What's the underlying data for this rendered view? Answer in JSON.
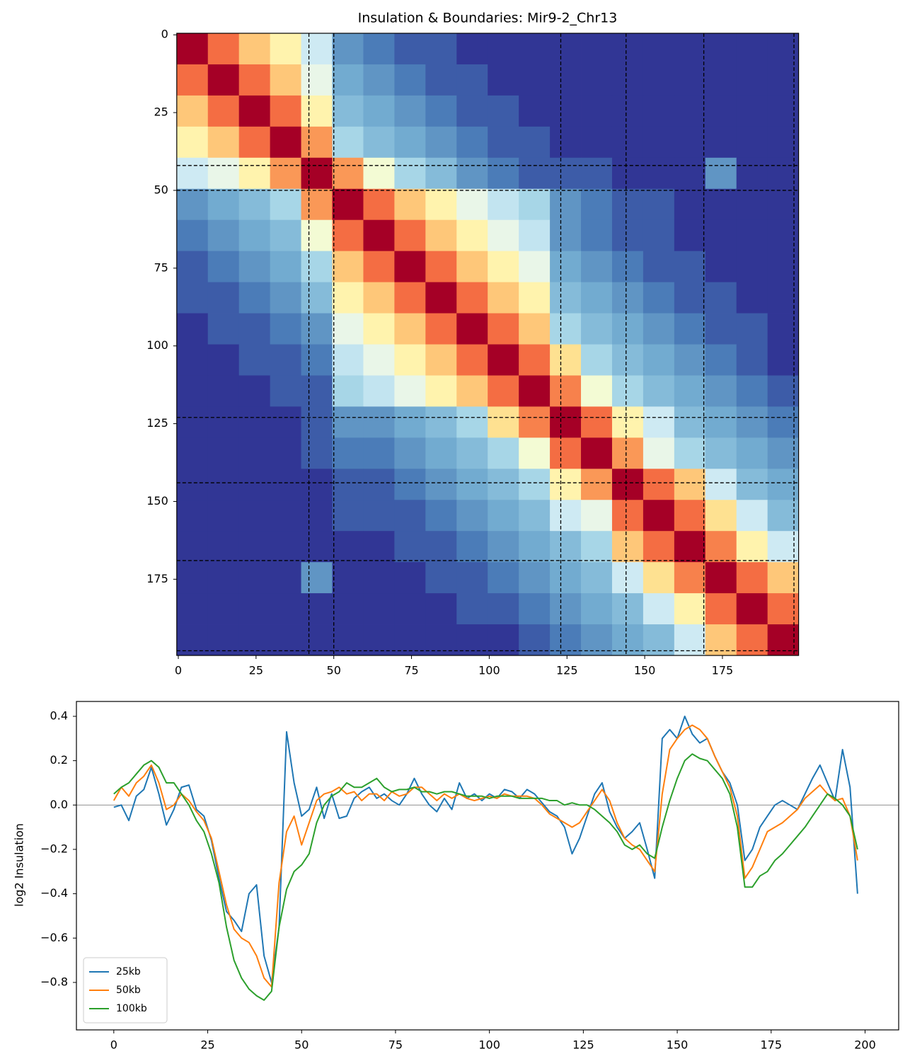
{
  "chart_data": [
    {
      "type": "heatmap",
      "title": "Insulation & Boundaries: Mir9-2_Chr13",
      "bin_edges": [
        0,
        10,
        20,
        30,
        40,
        50,
        60,
        70,
        80,
        90,
        100,
        110,
        120,
        130,
        140,
        150,
        160,
        170,
        180,
        190,
        200
      ],
      "matrix": [
        [
          1,
          0.55,
          0.35,
          0.25,
          0.15,
          0.08,
          0.07,
          0.06,
          0.06,
          0.05,
          0.05,
          0.05,
          0.05,
          0.05,
          0.05,
          0.05,
          0.05,
          0.05,
          0.05,
          0.05
        ],
        [
          0.55,
          1,
          0.55,
          0.35,
          0.18,
          0.09,
          0.08,
          0.07,
          0.06,
          0.06,
          0.05,
          0.05,
          0.05,
          0.05,
          0.05,
          0.05,
          0.05,
          0.05,
          0.05,
          0.05
        ],
        [
          0.35,
          0.55,
          1,
          0.55,
          0.25,
          0.1,
          0.09,
          0.08,
          0.07,
          0.06,
          0.06,
          0.05,
          0.05,
          0.05,
          0.05,
          0.05,
          0.05,
          0.05,
          0.05,
          0.05
        ],
        [
          0.25,
          0.35,
          0.55,
          1,
          0.45,
          0.12,
          0.1,
          0.09,
          0.08,
          0.07,
          0.06,
          0.06,
          0.05,
          0.05,
          0.05,
          0.05,
          0.05,
          0.05,
          0.05,
          0.05
        ],
        [
          0.15,
          0.18,
          0.25,
          0.45,
          1,
          0.45,
          0.2,
          0.12,
          0.1,
          0.08,
          0.07,
          0.06,
          0.06,
          0.06,
          0.05,
          0.05,
          0.05,
          0.08,
          0.05,
          0.05
        ],
        [
          0.08,
          0.09,
          0.1,
          0.12,
          0.45,
          1,
          0.55,
          0.35,
          0.25,
          0.18,
          0.14,
          0.12,
          0.08,
          0.07,
          0.06,
          0.06,
          0.05,
          0.05,
          0.05,
          0.05
        ],
        [
          0.07,
          0.08,
          0.09,
          0.1,
          0.2,
          0.55,
          1,
          0.55,
          0.35,
          0.25,
          0.18,
          0.14,
          0.08,
          0.07,
          0.06,
          0.06,
          0.05,
          0.05,
          0.05,
          0.05
        ],
        [
          0.06,
          0.07,
          0.08,
          0.09,
          0.12,
          0.35,
          0.55,
          1,
          0.55,
          0.35,
          0.25,
          0.18,
          0.09,
          0.08,
          0.07,
          0.06,
          0.06,
          0.05,
          0.05,
          0.05
        ],
        [
          0.06,
          0.06,
          0.07,
          0.08,
          0.1,
          0.25,
          0.35,
          0.55,
          1,
          0.55,
          0.35,
          0.25,
          0.1,
          0.09,
          0.08,
          0.07,
          0.06,
          0.06,
          0.05,
          0.05
        ],
        [
          0.05,
          0.06,
          0.06,
          0.07,
          0.08,
          0.18,
          0.25,
          0.35,
          0.55,
          1,
          0.55,
          0.35,
          0.12,
          0.1,
          0.09,
          0.08,
          0.07,
          0.06,
          0.06,
          0.05
        ],
        [
          0.05,
          0.05,
          0.06,
          0.06,
          0.07,
          0.14,
          0.18,
          0.25,
          0.35,
          0.55,
          1,
          0.55,
          0.3,
          0.12,
          0.1,
          0.09,
          0.08,
          0.07,
          0.06,
          0.05
        ],
        [
          0.05,
          0.05,
          0.05,
          0.06,
          0.06,
          0.12,
          0.14,
          0.18,
          0.25,
          0.35,
          0.55,
          1,
          0.5,
          0.2,
          0.12,
          0.1,
          0.09,
          0.08,
          0.07,
          0.06
        ],
        [
          0.05,
          0.05,
          0.05,
          0.05,
          0.06,
          0.08,
          0.08,
          0.09,
          0.1,
          0.12,
          0.3,
          0.5,
          1,
          0.55,
          0.25,
          0.15,
          0.1,
          0.09,
          0.08,
          0.07
        ],
        [
          0.05,
          0.05,
          0.05,
          0.05,
          0.06,
          0.07,
          0.07,
          0.08,
          0.09,
          0.1,
          0.12,
          0.2,
          0.55,
          1,
          0.45,
          0.18,
          0.12,
          0.1,
          0.09,
          0.08
        ],
        [
          0.05,
          0.05,
          0.05,
          0.05,
          0.05,
          0.06,
          0.06,
          0.07,
          0.08,
          0.09,
          0.1,
          0.12,
          0.25,
          0.45,
          1,
          0.55,
          0.35,
          0.15,
          0.1,
          0.09
        ],
        [
          0.05,
          0.05,
          0.05,
          0.05,
          0.05,
          0.06,
          0.06,
          0.06,
          0.07,
          0.08,
          0.09,
          0.1,
          0.15,
          0.18,
          0.55,
          1,
          0.55,
          0.3,
          0.15,
          0.1
        ],
        [
          0.05,
          0.05,
          0.05,
          0.05,
          0.05,
          0.05,
          0.05,
          0.06,
          0.06,
          0.07,
          0.08,
          0.09,
          0.1,
          0.12,
          0.35,
          0.55,
          1,
          0.5,
          0.25,
          0.15
        ],
        [
          0.05,
          0.05,
          0.05,
          0.05,
          0.08,
          0.05,
          0.05,
          0.05,
          0.06,
          0.06,
          0.07,
          0.08,
          0.09,
          0.1,
          0.15,
          0.3,
          0.5,
          1,
          0.55,
          0.35
        ],
        [
          0.05,
          0.05,
          0.05,
          0.05,
          0.05,
          0.05,
          0.05,
          0.05,
          0.05,
          0.06,
          0.06,
          0.07,
          0.08,
          0.09,
          0.1,
          0.15,
          0.25,
          0.55,
          1,
          0.55
        ],
        [
          0.05,
          0.05,
          0.05,
          0.05,
          0.05,
          0.05,
          0.05,
          0.05,
          0.05,
          0.05,
          0.05,
          0.06,
          0.07,
          0.08,
          0.09,
          0.1,
          0.15,
          0.35,
          0.55,
          1
        ]
      ],
      "zlim": [
        0.05,
        1
      ],
      "zscale": "log",
      "colormap": [
        "#313695",
        "#4575b4",
        "#74add1",
        "#abd9e9",
        "#e0f3f8",
        "#ffffbf",
        "#fee090",
        "#fdae61",
        "#f46d43",
        "#d73027",
        "#a50026"
      ],
      "boundaries": [
        42,
        50,
        123,
        144,
        169,
        198
      ],
      "xlim": [
        -0.5,
        199.5
      ],
      "ylim": [
        199.5,
        -0.5
      ],
      "xticks": [
        0,
        25,
        50,
        75,
        100,
        125,
        150,
        175
      ],
      "yticks": [
        0,
        25,
        50,
        75,
        100,
        125,
        150,
        175
      ]
    },
    {
      "type": "line",
      "ylabel": "log2 Insulation",
      "x": [
        0,
        2,
        4,
        6,
        8,
        10,
        12,
        14,
        16,
        18,
        20,
        22,
        24,
        26,
        28,
        30,
        32,
        34,
        36,
        38,
        40,
        42,
        44,
        46,
        48,
        50,
        52,
        54,
        56,
        58,
        60,
        62,
        64,
        66,
        68,
        70,
        72,
        74,
        76,
        78,
        80,
        82,
        84,
        86,
        88,
        90,
        92,
        94,
        96,
        98,
        100,
        102,
        104,
        106,
        108,
        110,
        112,
        114,
        116,
        118,
        120,
        122,
        124,
        126,
        128,
        130,
        132,
        134,
        136,
        138,
        140,
        142,
        144,
        146,
        148,
        150,
        152,
        154,
        156,
        158,
        160,
        162,
        164,
        166,
        168,
        170,
        172,
        174,
        176,
        178,
        180,
        182,
        184,
        186,
        188,
        190,
        192,
        194,
        196,
        198
      ],
      "series": [
        {
          "name": "25kb",
          "color": "#1f77b4",
          "values": [
            -0.01,
            0.0,
            -0.07,
            0.04,
            0.07,
            0.17,
            0.05,
            -0.09,
            -0.02,
            0.08,
            0.09,
            -0.02,
            -0.05,
            -0.16,
            -0.33,
            -0.48,
            -0.52,
            -0.57,
            -0.4,
            -0.36,
            -0.68,
            -0.8,
            -0.55,
            0.33,
            0.1,
            -0.05,
            -0.02,
            0.08,
            -0.06,
            0.05,
            -0.06,
            -0.05,
            0.03,
            0.06,
            0.08,
            0.03,
            0.05,
            0.02,
            0.0,
            0.05,
            0.12,
            0.05,
            0.0,
            -0.03,
            0.03,
            -0.02,
            0.1,
            0.03,
            0.05,
            0.02,
            0.05,
            0.03,
            0.07,
            0.06,
            0.03,
            0.07,
            0.05,
            0.01,
            -0.03,
            -0.05,
            -0.1,
            -0.22,
            -0.15,
            -0.05,
            0.05,
            0.1,
            -0.03,
            -0.1,
            -0.15,
            -0.12,
            -0.08,
            -0.2,
            -0.33,
            0.3,
            0.34,
            0.3,
            0.4,
            0.32,
            0.28,
            0.3,
            0.22,
            0.15,
            0.1,
            0.0,
            -0.25,
            -0.2,
            -0.1,
            -0.05,
            0.0,
            0.02,
            0.0,
            -0.02,
            0.05,
            0.12,
            0.18,
            0.1,
            0.02,
            0.25,
            0.08,
            -0.4
          ]
        },
        {
          "name": "50kb",
          "color": "#ff7f0e",
          "values": [
            0.02,
            0.08,
            0.04,
            0.1,
            0.13,
            0.18,
            0.1,
            -0.02,
            0.0,
            0.05,
            0.02,
            -0.03,
            -0.07,
            -0.15,
            -0.3,
            -0.45,
            -0.56,
            -0.6,
            -0.62,
            -0.68,
            -0.78,
            -0.82,
            -0.35,
            -0.12,
            -0.05,
            -0.18,
            -0.08,
            0.02,
            0.05,
            0.06,
            0.08,
            0.05,
            0.06,
            0.02,
            0.05,
            0.05,
            0.02,
            0.06,
            0.04,
            0.05,
            0.08,
            0.08,
            0.05,
            0.02,
            0.05,
            0.03,
            0.05,
            0.03,
            0.02,
            0.03,
            0.04,
            0.03,
            0.05,
            0.04,
            0.04,
            0.04,
            0.03,
            0.0,
            -0.04,
            -0.06,
            -0.08,
            -0.1,
            -0.08,
            -0.03,
            0.02,
            0.07,
            0.02,
            -0.08,
            -0.15,
            -0.18,
            -0.2,
            -0.25,
            -0.3,
            0.05,
            0.25,
            0.3,
            0.34,
            0.36,
            0.34,
            0.3,
            0.22,
            0.15,
            0.08,
            -0.05,
            -0.33,
            -0.28,
            -0.2,
            -0.12,
            -0.1,
            -0.08,
            -0.05,
            -0.02,
            0.03,
            0.06,
            0.09,
            0.05,
            0.02,
            0.03,
            -0.05,
            -0.25
          ]
        },
        {
          "name": "100kb",
          "color": "#2ca02c",
          "values": [
            0.05,
            0.08,
            0.1,
            0.14,
            0.18,
            0.2,
            0.17,
            0.1,
            0.1,
            0.05,
            0.0,
            -0.07,
            -0.12,
            -0.22,
            -0.35,
            -0.55,
            -0.7,
            -0.78,
            -0.83,
            -0.86,
            -0.88,
            -0.84,
            -0.55,
            -0.38,
            -0.3,
            -0.27,
            -0.22,
            -0.08,
            0.0,
            0.04,
            0.06,
            0.1,
            0.08,
            0.08,
            0.1,
            0.12,
            0.08,
            0.06,
            0.07,
            0.07,
            0.08,
            0.06,
            0.06,
            0.05,
            0.06,
            0.06,
            0.05,
            0.04,
            0.04,
            0.04,
            0.03,
            0.04,
            0.04,
            0.04,
            0.03,
            0.03,
            0.03,
            0.03,
            0.02,
            0.02,
            0.0,
            0.01,
            0.0,
            0.0,
            -0.02,
            -0.05,
            -0.08,
            -0.12,
            -0.18,
            -0.2,
            -0.18,
            -0.22,
            -0.24,
            -0.1,
            0.02,
            0.12,
            0.2,
            0.23,
            0.21,
            0.2,
            0.16,
            0.12,
            0.05,
            -0.1,
            -0.37,
            -0.37,
            -0.32,
            -0.3,
            -0.25,
            -0.22,
            -0.18,
            -0.14,
            -0.1,
            -0.05,
            0.0,
            0.05,
            0.03,
            0.0,
            -0.05,
            -0.2
          ]
        }
      ],
      "hline": 0,
      "xlim": [
        -9.95,
        208.95
      ],
      "ylim": [
        -1.014,
        0.467
      ],
      "xticks": [
        0,
        25,
        50,
        75,
        100,
        125,
        150,
        175,
        200
      ],
      "yticks": [
        {
          "value": -0.8,
          "label": "−0.8"
        },
        {
          "value": -0.6,
          "label": "−0.6"
        },
        {
          "value": -0.4,
          "label": "−0.4"
        },
        {
          "value": -0.2,
          "label": "−0.2"
        },
        {
          "value": 0,
          "label": "0.0"
        },
        {
          "value": 0.2,
          "label": "0.2"
        },
        {
          "value": 0.4,
          "label": "0.4"
        }
      ],
      "legend": "lower left"
    }
  ]
}
